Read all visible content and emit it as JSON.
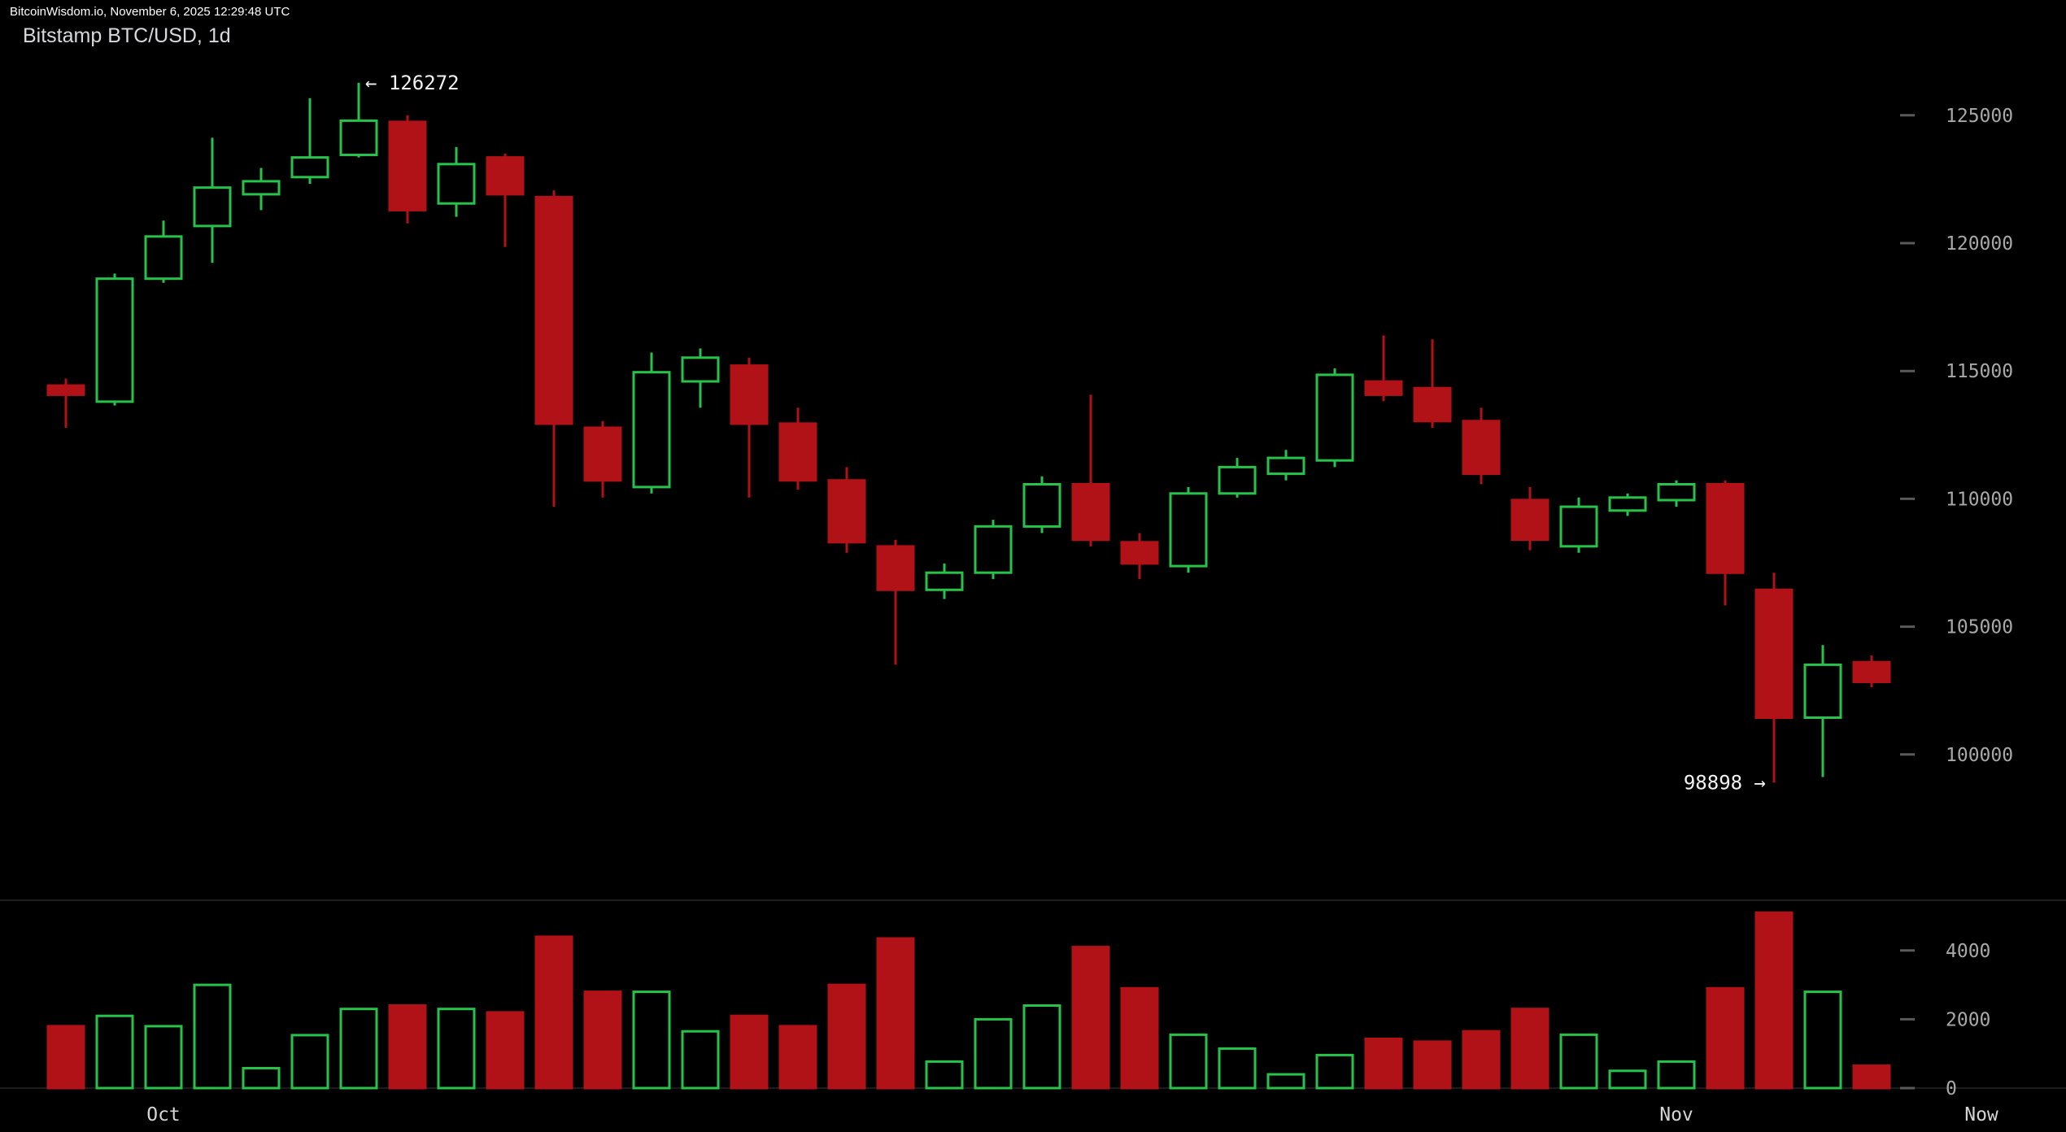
{
  "header": {
    "status_text": "BitcoinWisdom.io, November 6, 2025 12:29:48 UTC",
    "title": "Bitstamp BTC/USD, 1d"
  },
  "colors": {
    "background": "#000000",
    "bullish": "#27c24a",
    "bearish": "#b01217",
    "axis_text": "#a8a8a8",
    "xaxis_text": "#d4d4d4",
    "annotation_text": "#f2f2f2",
    "grid_line": "#1c1c1c",
    "tick_dash": "#5a5a5a"
  },
  "chart_data": [
    {
      "type": "candlestick",
      "title": "Bitstamp BTC/USD, 1d",
      "interval": "1d",
      "legend_position": "none",
      "grid": "off",
      "price_axis": {
        "side": "right",
        "range": [
          94300,
          129000
        ],
        "ticks": [
          125000,
          120000,
          115000,
          110000,
          105000,
          100000
        ]
      },
      "volume_axis": {
        "side": "right",
        "range": [
          0,
          5600
        ],
        "ticks": [
          4000,
          2000,
          0
        ]
      },
      "x_axis": {
        "ticks": [
          {
            "label": "Oct",
            "index": 2
          },
          {
            "label": "Nov",
            "index": 33
          },
          {
            "label": "Now",
            "index": 39.25
          }
        ]
      },
      "annotations": [
        {
          "text": "126272",
          "arrow": "left",
          "index": 6,
          "anchor": "high"
        },
        {
          "text": "98898",
          "arrow": "right",
          "index": 35,
          "anchor": "low"
        }
      ],
      "candle_format": [
        "open",
        "high",
        "low",
        "close",
        "volume"
      ],
      "candles": [
        [
          114430,
          114700,
          112780,
          114070,
          1800
        ],
        [
          113800,
          118810,
          113650,
          118610,
          2100
        ],
        [
          118610,
          120880,
          118450,
          120260,
          1800
        ],
        [
          120670,
          124120,
          119230,
          122170,
          3000
        ],
        [
          121910,
          122940,
          121290,
          122420,
          580
        ],
        [
          122580,
          125670,
          122320,
          123350,
          1540
        ],
        [
          123450,
          126272,
          123350,
          124790,
          2300
        ],
        [
          124740,
          125000,
          120770,
          121290,
          2400
        ],
        [
          121550,
          123760,
          121030,
          123090,
          2300
        ],
        [
          123350,
          123500,
          119850,
          121910,
          2200
        ],
        [
          121800,
          122060,
          109690,
          112940,
          4400
        ],
        [
          112780,
          113040,
          110050,
          110720,
          2800
        ],
        [
          110460,
          115720,
          110210,
          114950,
          2800
        ],
        [
          114590,
          115880,
          113560,
          115520,
          1650
        ],
        [
          115210,
          115520,
          110050,
          112940,
          2100
        ],
        [
          112940,
          113560,
          110360,
          110720,
          1800
        ],
        [
          110720,
          111240,
          107890,
          108300,
          3000
        ],
        [
          108140,
          108400,
          103510,
          106440,
          4350
        ],
        [
          106440,
          107470,
          106080,
          107110,
          770
        ],
        [
          107110,
          109180,
          106860,
          108920,
          2000
        ],
        [
          108920,
          110880,
          108660,
          110570,
          2400
        ],
        [
          110570,
          114070,
          108140,
          108400,
          4100
        ],
        [
          108300,
          108660,
          106860,
          107470,
          2900
        ],
        [
          107370,
          110460,
          107110,
          110210,
          1550
        ],
        [
          110210,
          111600,
          110050,
          111240,
          1150
        ],
        [
          110980,
          111910,
          110720,
          111600,
          400
        ],
        [
          111500,
          115100,
          111240,
          114850,
          960
        ],
        [
          114590,
          116390,
          113820,
          114070,
          1430
        ],
        [
          114330,
          116240,
          112780,
          113040,
          1350
        ],
        [
          113040,
          113560,
          110570,
          110980,
          1650
        ],
        [
          109950,
          110460,
          107990,
          108400,
          2300
        ],
        [
          108140,
          110050,
          107890,
          109690,
          1550
        ],
        [
          109540,
          110210,
          109330,
          110050,
          500
        ],
        [
          109950,
          110720,
          109690,
          110570,
          770
        ],
        [
          110570,
          110720,
          105830,
          107110,
          2900
        ],
        [
          106440,
          107110,
          98898,
          101440,
          5100
        ],
        [
          101440,
          104280,
          99120,
          103510,
          2800
        ],
        [
          103610,
          103870,
          102630,
          102840,
          650
        ]
      ]
    }
  ]
}
